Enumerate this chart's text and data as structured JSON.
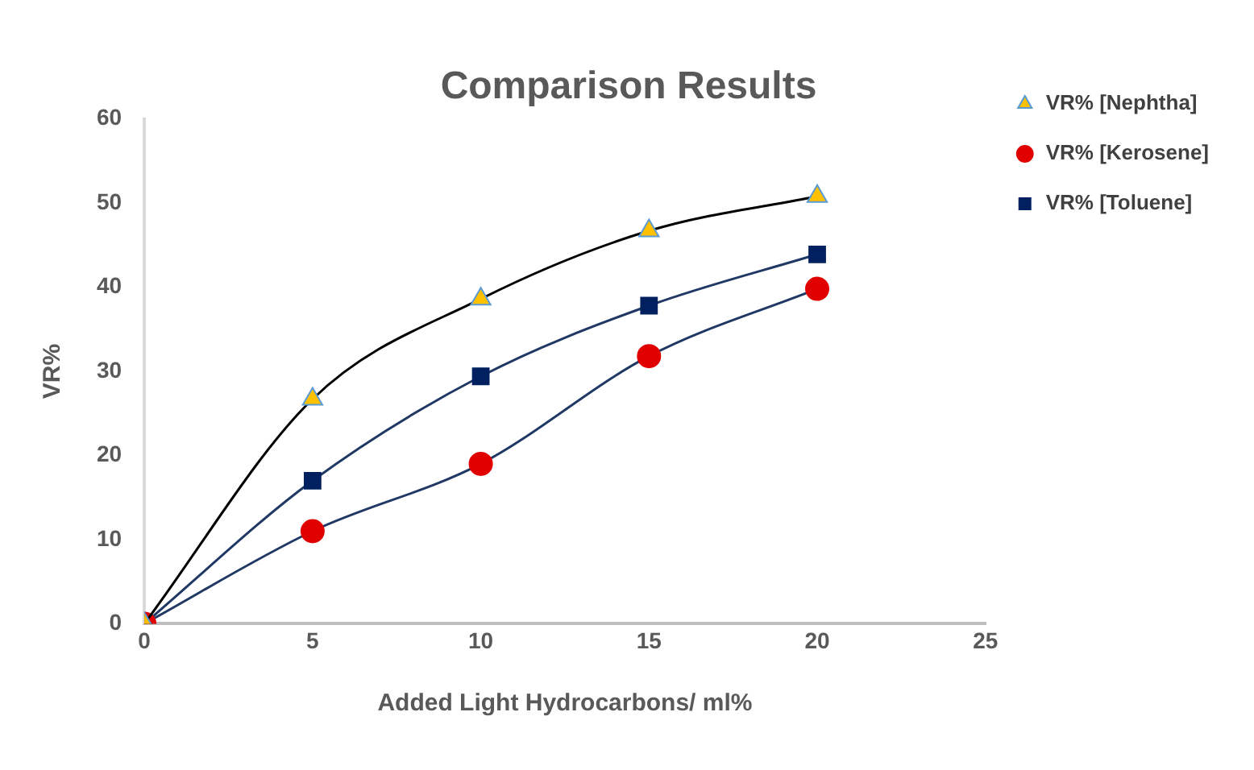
{
  "chart_data": {
    "type": "line",
    "title": "Comparison Results",
    "xlabel": "Added Light Hydrocarbons/ ml%",
    "ylabel": "VR%",
    "x": [
      0,
      5,
      10,
      15,
      20
    ],
    "series": [
      {
        "name": "VR% [Nephtha]",
        "color": "#ffc000",
        "marker": "triangle",
        "values": [
          0,
          26.7,
          38.6,
          46.7,
          50.8
        ]
      },
      {
        "name": "VR% [Kerosene]",
        "color": "#e00000",
        "marker": "circle",
        "values": [
          0,
          11,
          19,
          31.8,
          39.8
        ]
      },
      {
        "name": "VR% [Toluene]",
        "color": "#002060",
        "marker": "square",
        "values": [
          0,
          17,
          29.4,
          37.8,
          43.9
        ]
      }
    ],
    "xlim": [
      0,
      25
    ],
    "xticks": [
      0,
      5,
      10,
      15,
      20,
      25
    ],
    "ylim": [
      0,
      60
    ],
    "yticks": [
      0,
      10,
      20,
      30,
      40,
      50,
      60
    ],
    "grid": false,
    "legend": "right"
  }
}
